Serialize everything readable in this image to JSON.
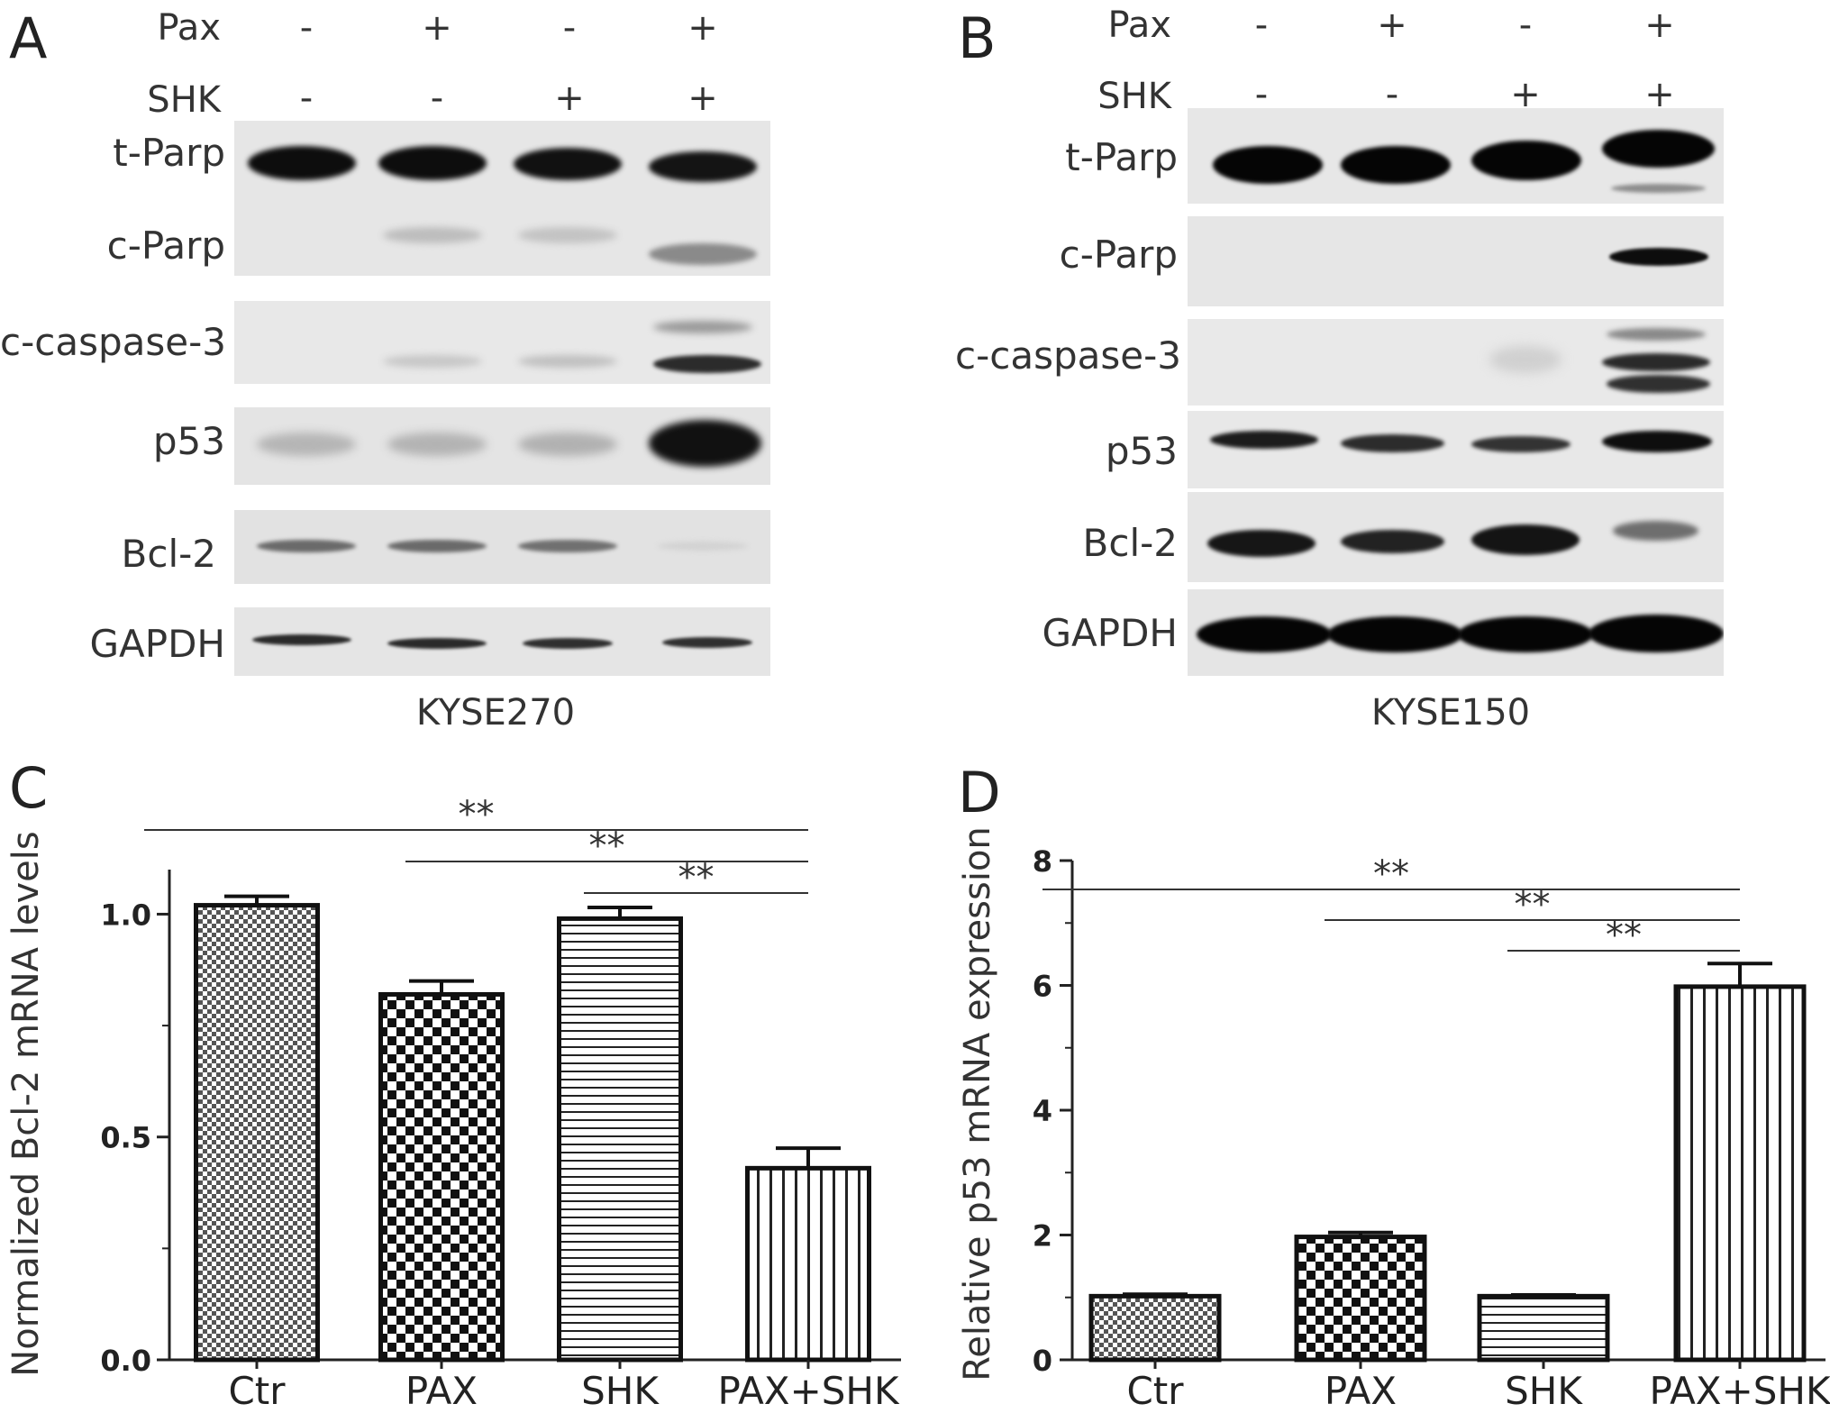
{
  "panels": {
    "A": {
      "letter": "A",
      "cell_line": "KYSE270",
      "conditions": [
        {
          "name": "Pax",
          "signs": [
            "-",
            "+",
            "-",
            "+"
          ]
        },
        {
          "name": "SHK",
          "signs": [
            "-",
            "-",
            "+",
            "+"
          ]
        }
      ],
      "blots": [
        {
          "label": "t-Parp"
        },
        {
          "label": "c-Parp"
        },
        {
          "label": "c-caspase-3"
        },
        {
          "label": "p53"
        },
        {
          "label": "Bcl-2"
        },
        {
          "label": "GAPDH"
        }
      ]
    },
    "B": {
      "letter": "B",
      "cell_line": "KYSE150",
      "conditions": [
        {
          "name": "Pax",
          "signs": [
            "-",
            "+",
            "-",
            "+"
          ]
        },
        {
          "name": "SHK",
          "signs": [
            "-",
            "-",
            "+",
            "+"
          ]
        }
      ],
      "blots": [
        {
          "label": "t-Parp"
        },
        {
          "label": "c-Parp"
        },
        {
          "label": "c-caspase-3"
        },
        {
          "label": "p53"
        },
        {
          "label": "Bcl-2"
        },
        {
          "label": "GAPDH"
        }
      ]
    },
    "C": {
      "letter": "C"
    },
    "D": {
      "letter": "D"
    }
  },
  "chart_data": [
    {
      "type": "bar",
      "panel": "C",
      "title": "",
      "xlabel": "",
      "ylabel": "Normalized Bcl-2 mRNA levels",
      "categories": [
        "Ctr",
        "PAX",
        "SHK",
        "PAX+SHK"
      ],
      "values": [
        1.02,
        0.82,
        0.99,
        0.43
      ],
      "errors": [
        0.02,
        0.03,
        0.025,
        0.045
      ],
      "ylim": [
        0,
        1.1
      ],
      "yticks": [
        "0.0",
        "0.5",
        "1.0"
      ],
      "patterns": [
        "fine-check",
        "checker",
        "horizontal",
        "vertical"
      ],
      "significance": [
        {
          "from": "Ctr",
          "to": "PAX+SHK",
          "label": "**"
        },
        {
          "from": "PAX",
          "to": "PAX+SHK",
          "label": "**"
        },
        {
          "from": "SHK",
          "to": "PAX+SHK",
          "label": "**"
        }
      ]
    },
    {
      "type": "bar",
      "panel": "D",
      "title": "",
      "xlabel": "",
      "ylabel": "Relative p53 mRNA expression",
      "categories": [
        "Ctr",
        "PAX",
        "SHK",
        "PAX+SHK"
      ],
      "values": [
        1.02,
        1.97,
        1.02,
        5.98
      ],
      "errors": [
        0.03,
        0.07,
        0.02,
        0.37
      ],
      "ylim": [
        0,
        8
      ],
      "yticks": [
        "0",
        "2",
        "4",
        "6",
        "8"
      ],
      "patterns": [
        "fine-check",
        "checker",
        "horizontal",
        "vertical"
      ],
      "significance": [
        {
          "from": "Ctr",
          "to": "PAX+SHK",
          "label": "**"
        },
        {
          "from": "PAX",
          "to": "PAX+SHK",
          "label": "**"
        },
        {
          "from": "SHK",
          "to": "PAX+SHK",
          "label": "**"
        }
      ]
    }
  ]
}
